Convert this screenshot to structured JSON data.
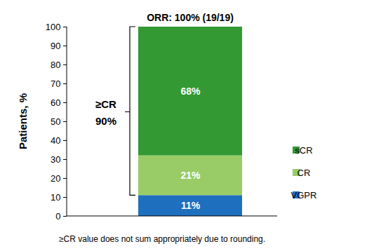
{
  "chart_data": {
    "type": "bar",
    "stacked": true,
    "data_labels": true,
    "grid": false,
    "legend": "right",
    "title": "ORR: 100% (19/19)",
    "y_label": "Patients, %",
    "caption": "≥CR value does not sum appropriately due to rounding.",
    "categories": [
      null
    ],
    "series": [
      {
        "name": "VGPR",
        "color": "#1f6fbf",
        "values": [
          11
        ],
        "value_labels": [
          "11%"
        ]
      },
      {
        "name": "CR",
        "color": "#99cc66",
        "values": [
          21
        ],
        "value_labels": [
          "21%"
        ]
      },
      {
        "name": "sCR",
        "color": "#339933",
        "values": [
          68
        ],
        "value_labels": [
          "68%"
        ]
      }
    ],
    "annotations": [
      {
        "text": "≥CR",
        "value": 90,
        "value_label": "90%",
        "covers": [
          "CR",
          "sCR"
        ]
      }
    ],
    "ylim": [
      0,
      100
    ],
    "yticks": [
      0,
      10,
      20,
      30,
      40,
      50,
      60,
      70,
      80,
      90,
      100
    ]
  }
}
